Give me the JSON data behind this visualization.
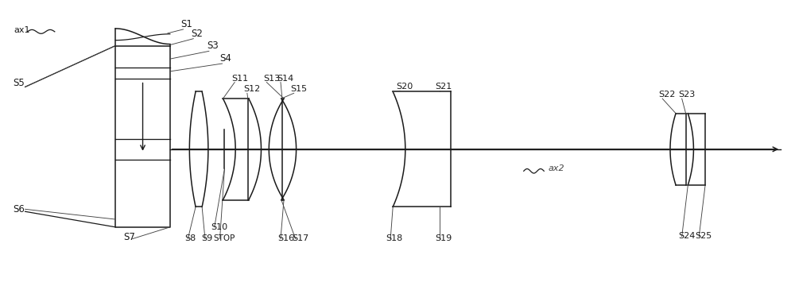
{
  "bg_color": "#ffffff",
  "line_color": "#1a1a1a",
  "figsize": [
    10.0,
    3.6
  ],
  "dpi": 100,
  "xlim": [
    0,
    10.0
  ],
  "ylim": [
    0,
    3.6
  ]
}
